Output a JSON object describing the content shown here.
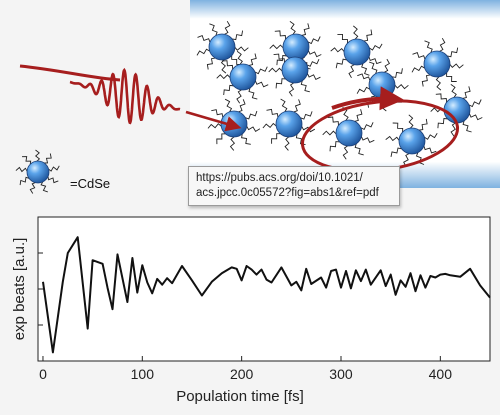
{
  "illustration": {
    "legend_label": "=CdSe",
    "link_tooltip": {
      "line1": "https://pubs.acs.org/doi/10.1021/",
      "line2": "acs.jpcc.0c05572?fig=abs1&ref=pdf"
    },
    "colors": {
      "nanocrystal": "#3a86d8",
      "ligand": "#222222",
      "laser_pulse": "#a61e1e",
      "panel_gradient_top": "#7fb2e0"
    }
  },
  "chart_data": {
    "type": "line",
    "title": "",
    "xlabel": "Population time [fs]",
    "ylabel": "exp beats [a.u.]",
    "xlim": [
      -5,
      450
    ],
    "ylim": [
      -1.0,
      1.0
    ],
    "xticks": [
      0,
      100,
      200,
      300,
      400
    ],
    "yticks_unlabeled": true,
    "series": [
      {
        "color": "#111111",
        "x": [
          0,
          10,
          20,
          25,
          35,
          45,
          50,
          60,
          65,
          70,
          75,
          85,
          90,
          95,
          100,
          105,
          110,
          115,
          120,
          125,
          130,
          140,
          150,
          160,
          170,
          180,
          190,
          195,
          200,
          205,
          210,
          215,
          220,
          225,
          230,
          240,
          250,
          255,
          260,
          265,
          270,
          280,
          285,
          290,
          295,
          300,
          305,
          310,
          315,
          320,
          325,
          330,
          340,
          345,
          350,
          355,
          360,
          365,
          370,
          375,
          380,
          385,
          390,
          395,
          400,
          405,
          410,
          420,
          430,
          440,
          450
        ],
        "y": [
          0.1,
          -0.88,
          0.1,
          0.5,
          0.72,
          -0.55,
          0.4,
          0.35,
          0.02,
          -0.28,
          0.48,
          -0.18,
          0.43,
          -0.05,
          0.33,
          0.09,
          -0.06,
          0.14,
          0.06,
          0.15,
          0.08,
          0.32,
          0.12,
          -0.09,
          0.1,
          0.22,
          0.3,
          0.28,
          0.12,
          0.32,
          0.27,
          0.2,
          0.27,
          0.13,
          0.09,
          0.3,
          0.05,
          0.1,
          -0.02,
          0.28,
          0.07,
          0.16,
          0.02,
          0.25,
          0.27,
          0.02,
          0.25,
          0.01,
          0.26,
          0.11,
          0.27,
          0.06,
          0.26,
          0.04,
          0.2,
          -0.08,
          0.12,
          0.03,
          0.22,
          -0.03,
          0.19,
          0.02,
          0.18,
          0.16,
          0.2,
          0.21,
          0.19,
          0.17,
          0.28,
          0.05,
          -0.12
        ]
      }
    ]
  }
}
